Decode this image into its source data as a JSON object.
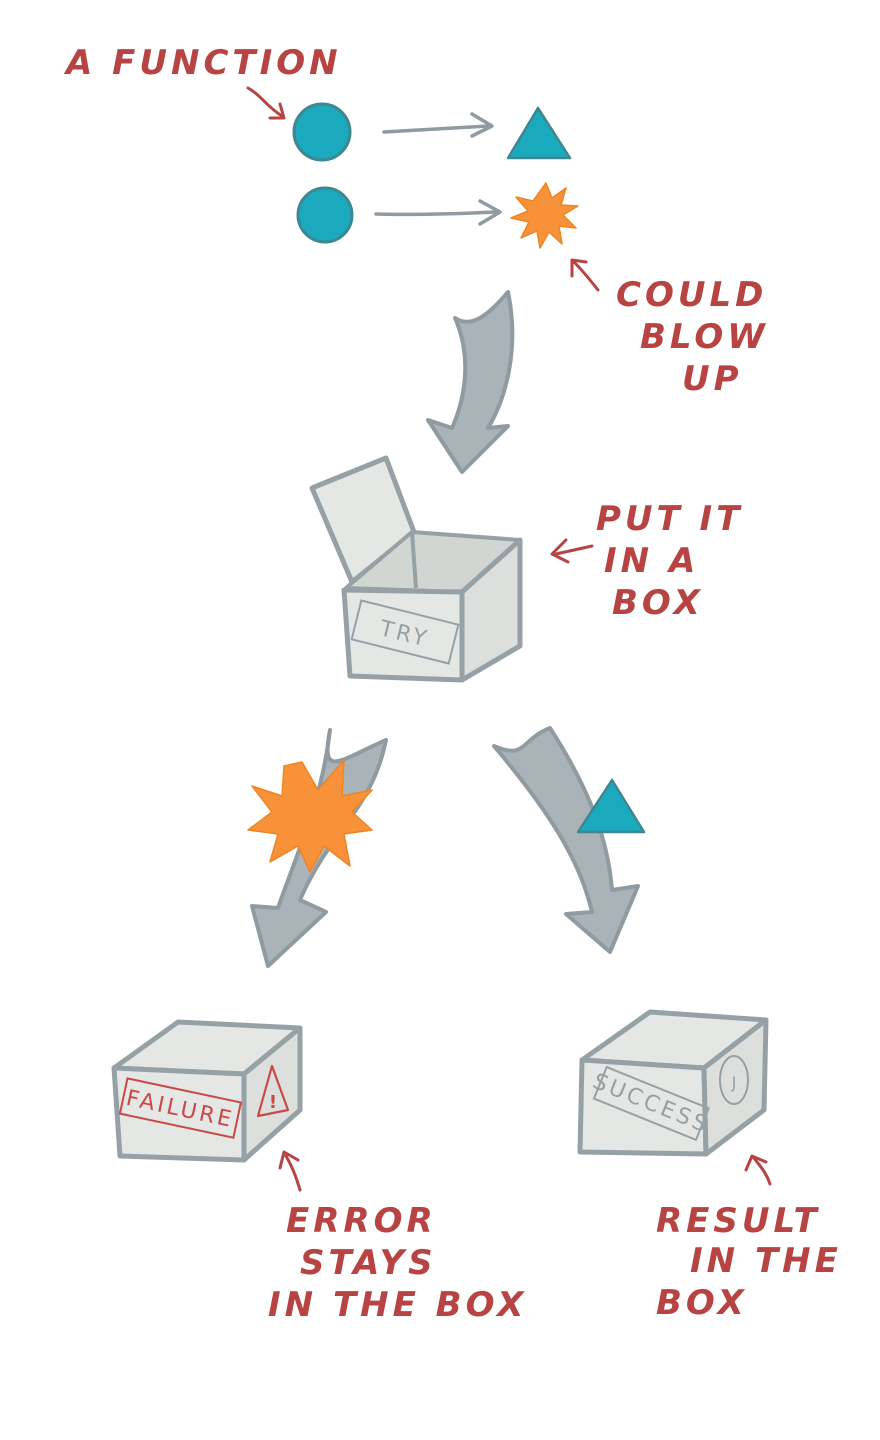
{
  "colors": {
    "label": "#b74343",
    "teal": "#1aa9bd",
    "teal_stroke": "#3d8790",
    "orange": "#f7923a",
    "arrow_fill": "#a9b3b8",
    "arrow_stroke": "#8f9ba1",
    "box_fill": "#e4e7e4",
    "box_inner": "#d2d6d3",
    "box_stroke": "#96a1a6"
  },
  "labels": {
    "function": "A FUNCTION",
    "could_blow_up": [
      "COULD",
      "BLOW",
      "UP"
    ],
    "put_in_box": [
      "PUT IT",
      "IN A",
      "BOX"
    ],
    "error_stays": [
      "ERROR",
      "STAYS",
      "IN THE BOX"
    ],
    "result_in_box": [
      "RESULT",
      "IN THE",
      "BOX"
    ]
  },
  "stamps": {
    "try": "TRY",
    "failure": "FAILURE",
    "success": "SUCCESS",
    "warning_mark": "!",
    "check_mark": "J"
  }
}
